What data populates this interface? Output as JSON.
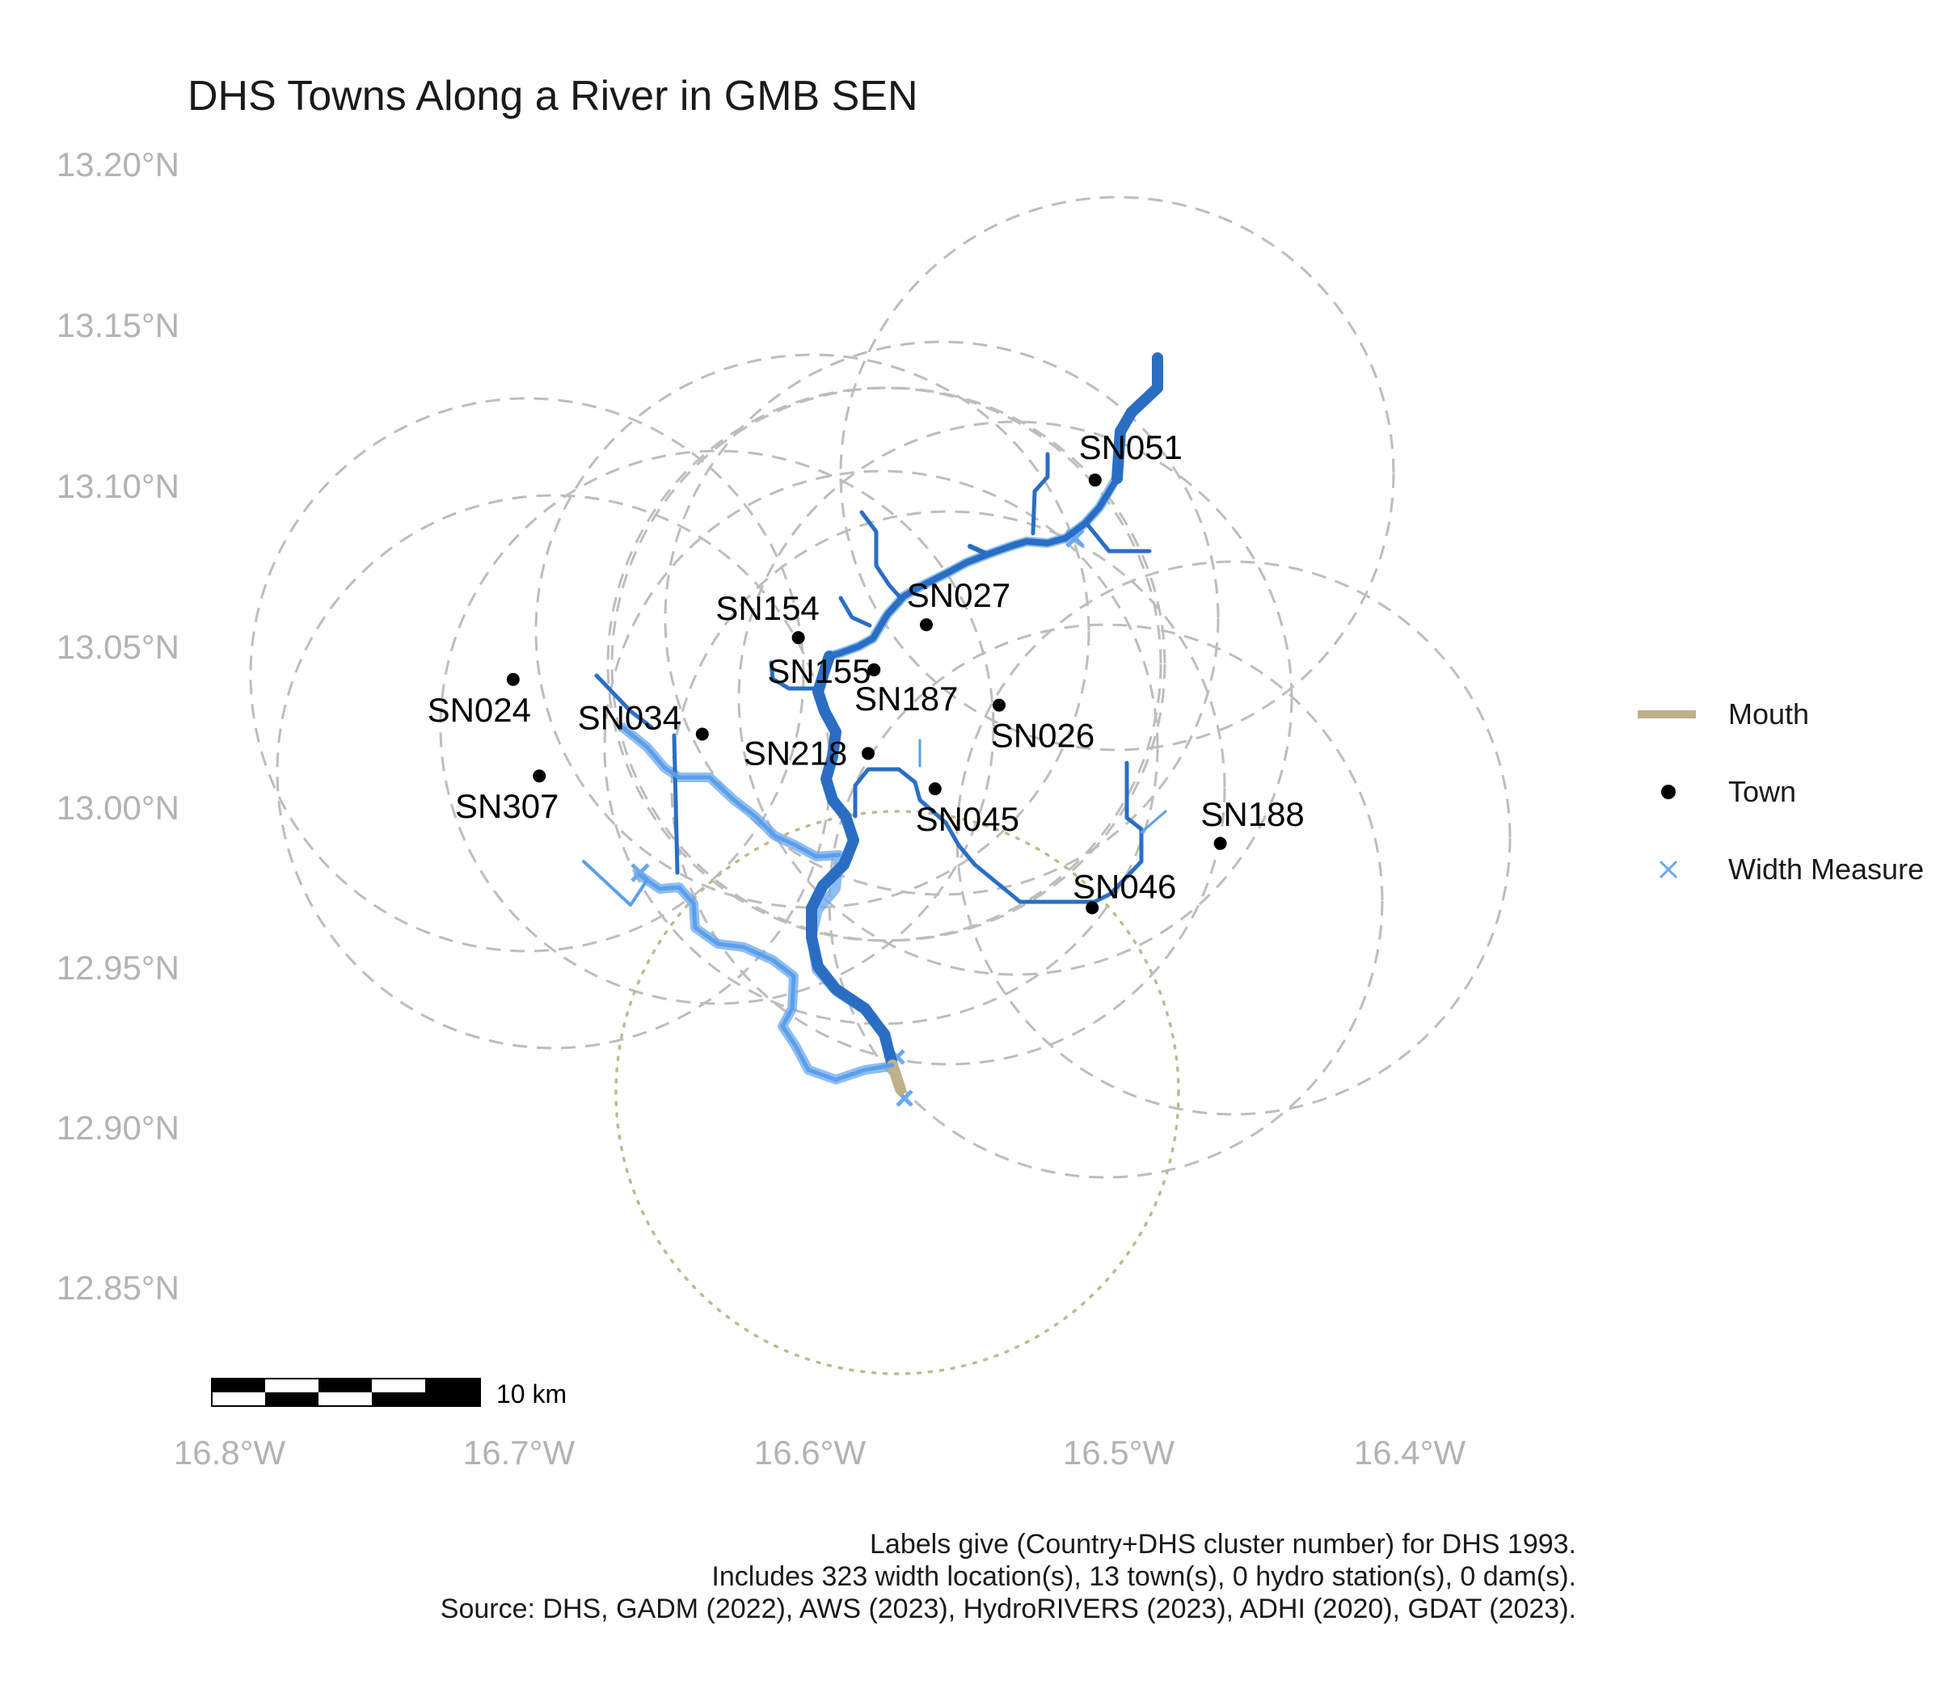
{
  "title": "DHS Towns Along a River in GMB SEN",
  "axes": {
    "y_ticks": [
      "13.20°N",
      "13.15°N",
      "13.10°N",
      "13.05°N",
      "13.00°N",
      "12.95°N",
      "12.90°N",
      "12.85°N"
    ],
    "x_ticks": [
      "16.8°W",
      "16.7°W",
      "16.6°W",
      "16.5°W",
      "16.4°W"
    ]
  },
  "colors": {
    "river": "#2a6ec4",
    "river_light": "#5b9fe8",
    "width_measure": "#6aa8f0",
    "mouth": "#bfb18a",
    "buffer": "#bdbdbd",
    "mouth_buffer": "#c4b78f",
    "town": "#000000"
  },
  "towns": [
    {
      "id": "SN051",
      "lon": -16.502,
      "lat": 13.102
    },
    {
      "id": "SN027",
      "lon": -16.56,
      "lat": 13.057
    },
    {
      "id": "SN154",
      "lon": -16.604,
      "lat": 13.053
    },
    {
      "id": "SN155",
      "lon": -16.578,
      "lat": 13.043
    },
    {
      "id": "SN187",
      "lon": -16.578,
      "lat": 13.043
    },
    {
      "id": "SN026",
      "lon": -16.535,
      "lat": 13.032
    },
    {
      "id": "SN024",
      "lon": -16.702,
      "lat": 13.04
    },
    {
      "id": "SN034",
      "lon": -16.637,
      "lat": 13.023
    },
    {
      "id": "SN218",
      "lon": -16.58,
      "lat": 13.017
    },
    {
      "id": "SN307",
      "lon": -16.693,
      "lat": 13.01
    },
    {
      "id": "SN045",
      "lon": -16.557,
      "lat": 13.006
    },
    {
      "id": "SN188",
      "lon": -16.459,
      "lat": 12.989
    },
    {
      "id": "SN046",
      "lon": -16.503,
      "lat": 12.969
    }
  ],
  "legend": {
    "mouth": "Mouth",
    "town": "Town",
    "width_measure": "Width Measure"
  },
  "scale_bar": {
    "label": "10 km"
  },
  "caption": [
    "Labels give (Country+DHS cluster number) for DHS 1993.",
    "Includes 323 width location(s), 13 town(s), 0 hydro station(s), 0 dam(s).",
    "Source: DHS, GADM (2022), AWS (2023), HydroRIVERS (2023), ADHI (2020), GDAT (2023)."
  ]
}
